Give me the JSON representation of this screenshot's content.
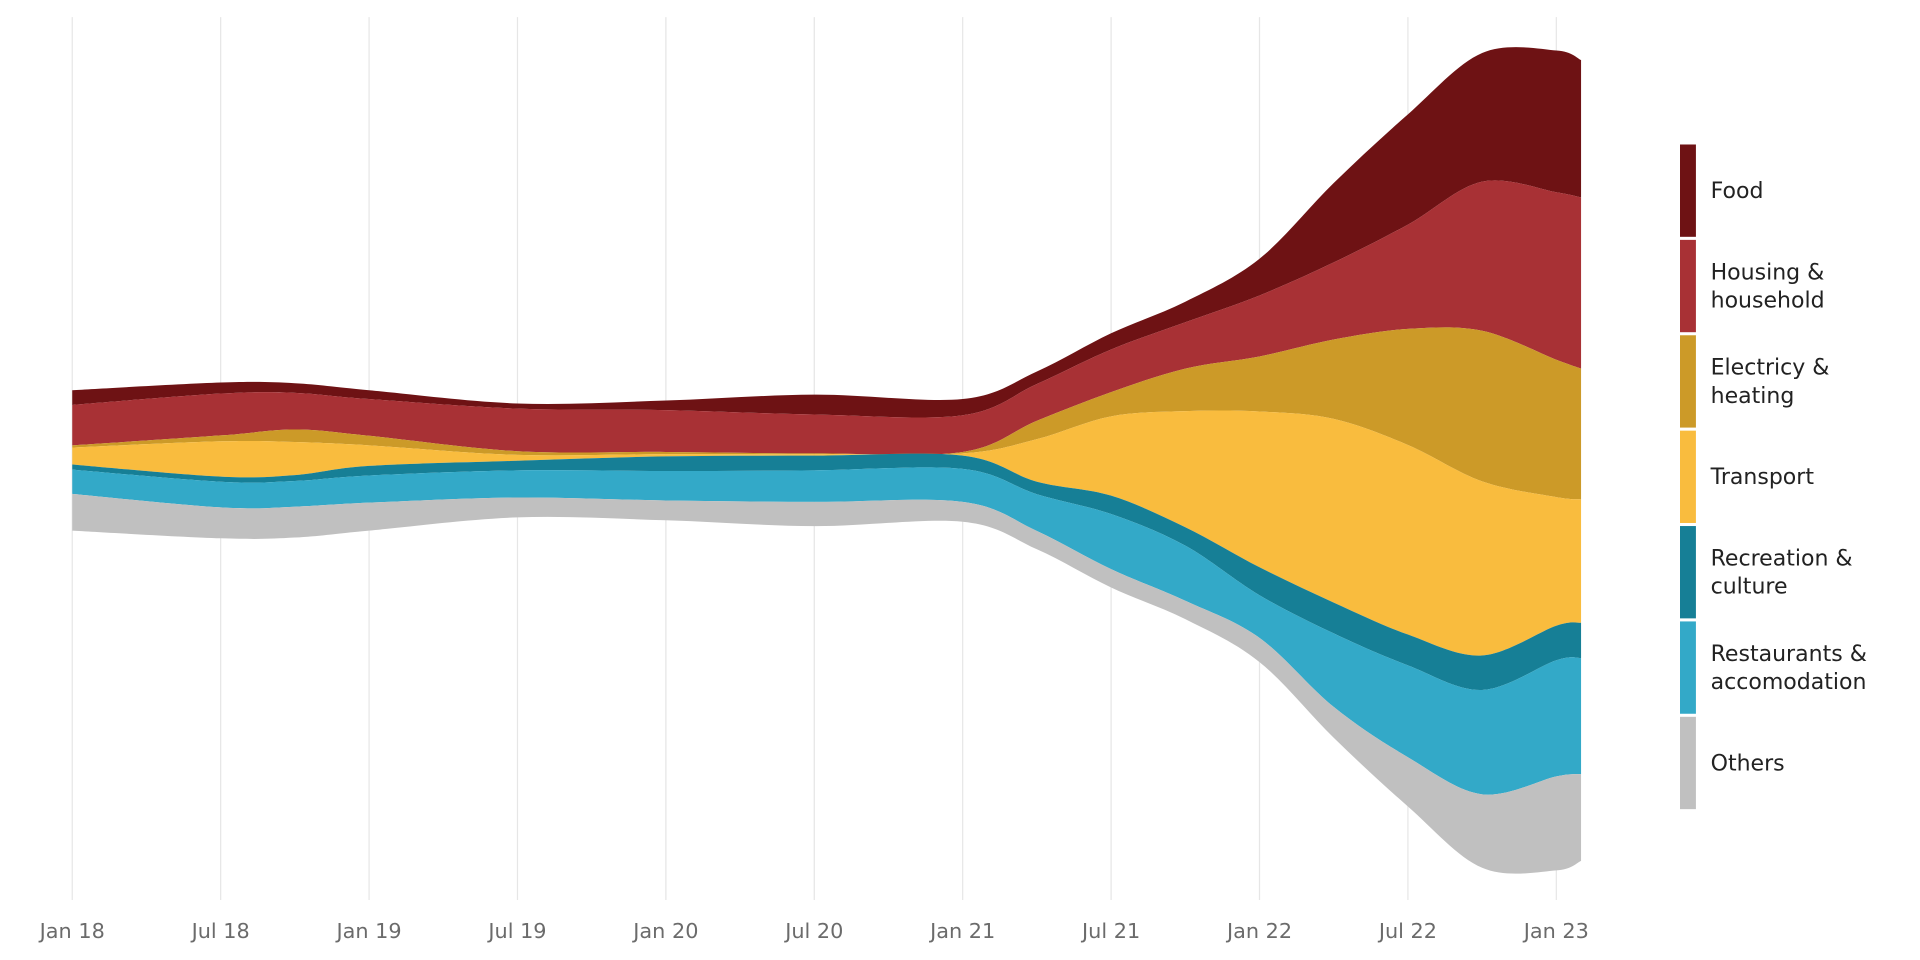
{
  "chart_data": {
    "type": "area",
    "subtype": "streamgraph",
    "title": "",
    "xlabel": "",
    "ylabel": "",
    "x_unit": "months since Jan 2018",
    "x": [
      0,
      6,
      9,
      12,
      18,
      24,
      30,
      36,
      39,
      42,
      45,
      48,
      51,
      54,
      57,
      60,
      61
    ],
    "x_ticks": [
      {
        "m": 0,
        "label": "Jan 18"
      },
      {
        "m": 6,
        "label": "Jul 18"
      },
      {
        "m": 12,
        "label": "Jan 19"
      },
      {
        "m": 18,
        "label": "Jul 19"
      },
      {
        "m": 24,
        "label": "Jan 20"
      },
      {
        "m": 30,
        "label": "Jul 20"
      },
      {
        "m": 36,
        "label": "Jan 21"
      },
      {
        "m": 42,
        "label": "Jul 21"
      },
      {
        "m": 48,
        "label": "Jan 22"
      },
      {
        "m": 54,
        "label": "Jul 22"
      },
      {
        "m": 60,
        "label": "Jan 23"
      }
    ],
    "grid": "vertical",
    "legend_position": "right",
    "series": [
      {
        "name": "Food",
        "label_lines": [
          "Food"
        ],
        "color": "#6e1214",
        "values": [
          0.2,
          0.15,
          0.13,
          0.12,
          0.07,
          0.13,
          0.27,
          0.22,
          0.17,
          0.22,
          0.28,
          0.5,
          1.08,
          1.5,
          1.75,
          1.93,
          1.87
        ]
      },
      {
        "name": "Housing & household",
        "label_lines": [
          "Housing &",
          "household"
        ],
        "color": "#a83135",
        "values": [
          0.55,
          0.57,
          0.5,
          0.5,
          0.58,
          0.57,
          0.53,
          0.5,
          0.5,
          0.58,
          0.63,
          0.83,
          1.05,
          1.42,
          2.03,
          2.28,
          2.33
        ]
      },
      {
        "name": "Electricty & heating",
        "label_lines": [
          "Electricy &",
          "heating"
        ],
        "color": "#cc9a28",
        "values": [
          0.03,
          0.08,
          0.17,
          0.13,
          0.05,
          0.03,
          0.01,
          0.02,
          0.25,
          0.33,
          0.58,
          0.75,
          1.08,
          1.58,
          2.05,
          1.87,
          1.78
        ]
      },
      {
        "name": "Transport",
        "label_lines": [
          "Transport"
        ],
        "color": "#f9bc3e",
        "values": [
          0.23,
          0.48,
          0.45,
          0.28,
          0.08,
          0.03,
          0.02,
          0.03,
          0.58,
          1.08,
          1.58,
          2.12,
          2.5,
          2.58,
          2.37,
          1.75,
          1.68
        ]
      },
      {
        "name": "Recreation & culture",
        "label_lines": [
          "Recreation &",
          "culture"
        ],
        "color": "#167f96",
        "values": [
          0.07,
          0.07,
          0.08,
          0.13,
          0.13,
          0.2,
          0.2,
          0.18,
          0.17,
          0.25,
          0.25,
          0.38,
          0.42,
          0.42,
          0.47,
          0.47,
          0.48
        ]
      },
      {
        "name": "Restaurants & accomodation",
        "label_lines": [
          "Restaurants &",
          "accomodation"
        ],
        "color": "#33a9c8",
        "values": [
          0.33,
          0.35,
          0.35,
          0.37,
          0.37,
          0.4,
          0.43,
          0.45,
          0.5,
          0.75,
          0.75,
          0.58,
          1.0,
          1.25,
          1.42,
          1.58,
          1.58
        ]
      },
      {
        "name": "Others",
        "label_lines": [
          "Others"
        ],
        "color": "#c0c0c0",
        "values": [
          0.5,
          0.42,
          0.42,
          0.38,
          0.27,
          0.27,
          0.33,
          0.27,
          0.25,
          0.25,
          0.25,
          0.33,
          0.42,
          0.67,
          1.0,
          1.28,
          1.18
        ]
      }
    ]
  }
}
